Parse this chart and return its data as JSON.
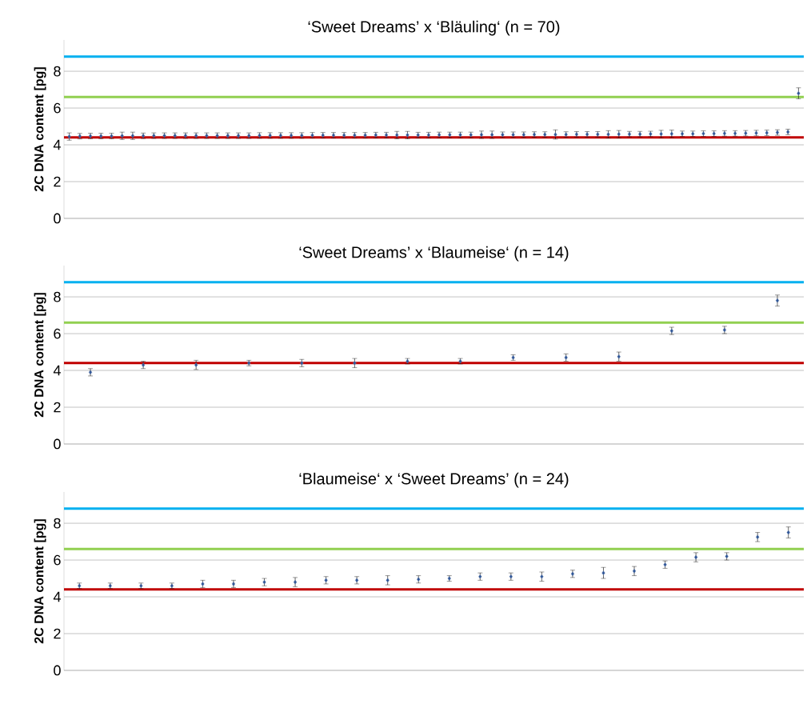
{
  "chart_data": [
    {
      "type": "scatter",
      "title": "‘Sweet Dreams’ x ‘Bläuling‘ (n = 70)",
      "ylabel": "2C DNA content [pg]",
      "categories": [
        null,
        null,
        null,
        null,
        null,
        null,
        null,
        null,
        null,
        null,
        null,
        null,
        null,
        null,
        null,
        null,
        null,
        null,
        null,
        null,
        null,
        null,
        null,
        null,
        null,
        null,
        null,
        null,
        null,
        null,
        null,
        null,
        null,
        null,
        null,
        null,
        null,
        null,
        null,
        null,
        null,
        null,
        null,
        null,
        null,
        null,
        null,
        null,
        null,
        null,
        null,
        null,
        null,
        null,
        null,
        null,
        null,
        null,
        null,
        null,
        null,
        null,
        null,
        null,
        null,
        null,
        null,
        null,
        null,
        null
      ],
      "values": [
        4.45,
        4.47,
        4.48,
        4.48,
        4.48,
        4.49,
        4.49,
        4.49,
        4.5,
        4.5,
        4.5,
        4.5,
        4.5,
        4.5,
        4.5,
        4.5,
        4.5,
        4.5,
        4.51,
        4.51,
        4.51,
        4.51,
        4.51,
        4.52,
        4.52,
        4.52,
        4.52,
        4.52,
        4.52,
        4.53,
        4.53,
        4.53,
        4.53,
        4.53,
        4.53,
        4.54,
        4.54,
        4.54,
        4.54,
        4.55,
        4.55,
        4.55,
        4.55,
        4.55,
        4.56,
        4.56,
        4.56,
        4.56,
        4.57,
        4.57,
        4.57,
        4.57,
        4.58,
        4.58,
        4.58,
        4.59,
        4.59,
        4.6,
        4.6,
        4.6,
        4.61,
        4.61,
        4.62,
        4.62,
        4.63,
        4.64,
        4.65,
        4.67,
        4.7,
        6.8
      ],
      "errors": [
        0.2,
        0.15,
        0.15,
        0.15,
        0.15,
        0.2,
        0.2,
        0.15,
        0.15,
        0.15,
        0.15,
        0.15,
        0.15,
        0.15,
        0.15,
        0.15,
        0.15,
        0.15,
        0.15,
        0.15,
        0.15,
        0.15,
        0.15,
        0.15,
        0.15,
        0.15,
        0.15,
        0.15,
        0.15,
        0.15,
        0.15,
        0.2,
        0.2,
        0.15,
        0.15,
        0.15,
        0.15,
        0.15,
        0.15,
        0.2,
        0.2,
        0.15,
        0.15,
        0.15,
        0.15,
        0.15,
        0.25,
        0.15,
        0.15,
        0.15,
        0.15,
        0.2,
        0.2,
        0.15,
        0.15,
        0.15,
        0.2,
        0.2,
        0.15,
        0.15,
        0.15,
        0.15,
        0.15,
        0.15,
        0.15,
        0.15,
        0.15,
        0.15,
        0.15,
        0.3
      ],
      "color": "#2f5597",
      "marker": "diamond",
      "ylim": [
        0,
        9.7
      ],
      "yticks": [
        0,
        2,
        4,
        6,
        8
      ],
      "grid": "y",
      "ref_lines": [
        {
          "axis": "y",
          "value": 8.8,
          "color": "#00b0f0"
        },
        {
          "axis": "y",
          "value": 6.6,
          "color": "#92d050"
        },
        {
          "axis": "y",
          "value": 4.4,
          "color": "#c00000"
        }
      ]
    },
    {
      "type": "scatter",
      "title": "‘Sweet Dreams’ x ‘Blaumeise‘ (n = 14)",
      "ylabel": "2C DNA content [pg]",
      "categories": [
        null,
        null,
        null,
        null,
        null,
        null,
        null,
        null,
        null,
        null,
        null,
        null,
        null,
        null
      ],
      "values": [
        3.9,
        4.3,
        4.3,
        4.4,
        4.4,
        4.4,
        4.5,
        4.5,
        4.7,
        4.7,
        4.75,
        6.15,
        6.2,
        7.8
      ],
      "errors": [
        0.2,
        0.2,
        0.25,
        0.15,
        0.2,
        0.25,
        0.15,
        0.15,
        0.15,
        0.2,
        0.25,
        0.2,
        0.2,
        0.3
      ],
      "color": "#2f5597",
      "marker": "diamond",
      "ylim": [
        0,
        9.7
      ],
      "yticks": [
        0,
        2,
        4,
        6,
        8
      ],
      "grid": "y",
      "ref_lines": [
        {
          "axis": "y",
          "value": 8.8,
          "color": "#00b0f0"
        },
        {
          "axis": "y",
          "value": 6.6,
          "color": "#92d050"
        },
        {
          "axis": "y",
          "value": 4.4,
          "color": "#c00000"
        }
      ]
    },
    {
      "type": "scatter",
      "title": "‘Blaumeise‘ x ‘Sweet Dreams’ (n = 24)",
      "ylabel": "2C DNA content [pg]",
      "categories": [
        null,
        null,
        null,
        null,
        null,
        null,
        null,
        null,
        null,
        null,
        null,
        null,
        null,
        null,
        null,
        null,
        null,
        null,
        null,
        null,
        null,
        null,
        null,
        null
      ],
      "values": [
        4.6,
        4.6,
        4.6,
        4.6,
        4.7,
        4.7,
        4.8,
        4.8,
        4.9,
        4.9,
        4.9,
        4.95,
        5.0,
        5.1,
        5.1,
        5.1,
        5.25,
        5.3,
        5.4,
        5.75,
        6.15,
        6.2,
        7.25,
        7.5
      ],
      "errors": [
        0.15,
        0.15,
        0.15,
        0.15,
        0.2,
        0.2,
        0.2,
        0.25,
        0.2,
        0.2,
        0.25,
        0.2,
        0.15,
        0.2,
        0.2,
        0.25,
        0.2,
        0.3,
        0.25,
        0.2,
        0.25,
        0.2,
        0.25,
        0.3
      ],
      "color": "#2f5597",
      "marker": "diamond",
      "ylim": [
        0,
        9.7
      ],
      "yticks": [
        0,
        2,
        4,
        6,
        8
      ],
      "grid": "y",
      "ref_lines": [
        {
          "axis": "y",
          "value": 8.8,
          "color": "#00b0f0"
        },
        {
          "axis": "y",
          "value": 6.6,
          "color": "#92d050"
        },
        {
          "axis": "y",
          "value": 4.4,
          "color": "#c00000"
        }
      ]
    }
  ]
}
